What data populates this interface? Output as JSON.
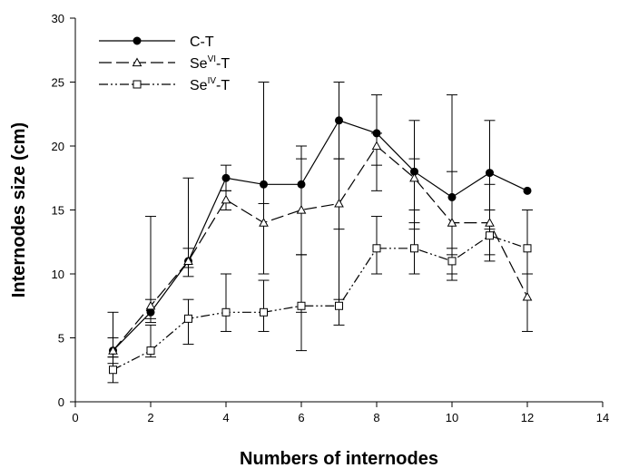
{
  "chart_data": {
    "type": "line",
    "xlabel": "Numbers of internodes",
    "ylabel": "Internodes size (cm)",
    "xlim": [
      0,
      14
    ],
    "ylim": [
      0,
      30
    ],
    "xticks": [
      0,
      2,
      4,
      6,
      8,
      10,
      12,
      14
    ],
    "yticks": [
      0,
      5,
      10,
      15,
      20,
      25,
      30
    ],
    "grid": false,
    "legend_position": "top-left",
    "series": [
      {
        "name_base": "C-T",
        "name_sup": "",
        "name_suffix": "",
        "marker": "filled-circle",
        "line_style": "solid",
        "color": "#000000",
        "x": [
          1,
          2,
          3,
          4,
          5,
          6,
          7,
          8,
          9,
          10,
          11,
          12
        ],
        "y": [
          4,
          7,
          11,
          17.5,
          17,
          17,
          22,
          21,
          18,
          16,
          17.9,
          16.5
        ],
        "err_low": [
          3.5,
          6.2,
          9.8,
          16.5,
          10,
          11.5,
          19,
          18.5,
          15,
          11.5,
          15,
          null
        ],
        "err_high": [
          7,
          14.5,
          17.5,
          18.5,
          25,
          20,
          25,
          24,
          22,
          24,
          22,
          null
        ]
      },
      {
        "name_base": "Se",
        "name_sup": "VI",
        "name_suffix": "-T",
        "marker": "open-triangle",
        "line_style": "dashed",
        "color": "#000000",
        "x": [
          1,
          2,
          3,
          4,
          5,
          6,
          7,
          8,
          9,
          10,
          11,
          12
        ],
        "y": [
          4,
          7.5,
          11,
          15.8,
          14,
          15,
          15.5,
          20,
          17.5,
          14,
          14,
          8.2
        ],
        "err_low": [
          3,
          6.5,
          10.5,
          15,
          10,
          4,
          8,
          16.5,
          13.5,
          10,
          11.5,
          5.5
        ],
        "err_high": [
          5,
          8,
          12,
          16.5,
          15.5,
          19,
          19,
          21,
          19,
          18,
          17,
          10
        ]
      },
      {
        "name_base": "Se",
        "name_sup": "IV",
        "name_suffix": "-T",
        "marker": "open-square",
        "line_style": "dash-dot-dot",
        "color": "#000000",
        "x": [
          1,
          2,
          3,
          4,
          5,
          6,
          7,
          8,
          9,
          10,
          11,
          12
        ],
        "y": [
          2.5,
          4,
          6.5,
          7,
          7,
          7.5,
          7.5,
          12,
          12,
          11,
          13,
          12
        ],
        "err_low": [
          1.5,
          3.5,
          4.5,
          5.5,
          5.5,
          7,
          6,
          10,
          10,
          9.5,
          11,
          10
        ],
        "err_high": [
          3.5,
          6,
          8,
          10,
          9.5,
          11.5,
          13.5,
          14.5,
          14,
          12,
          13.5,
          15
        ]
      }
    ]
  }
}
